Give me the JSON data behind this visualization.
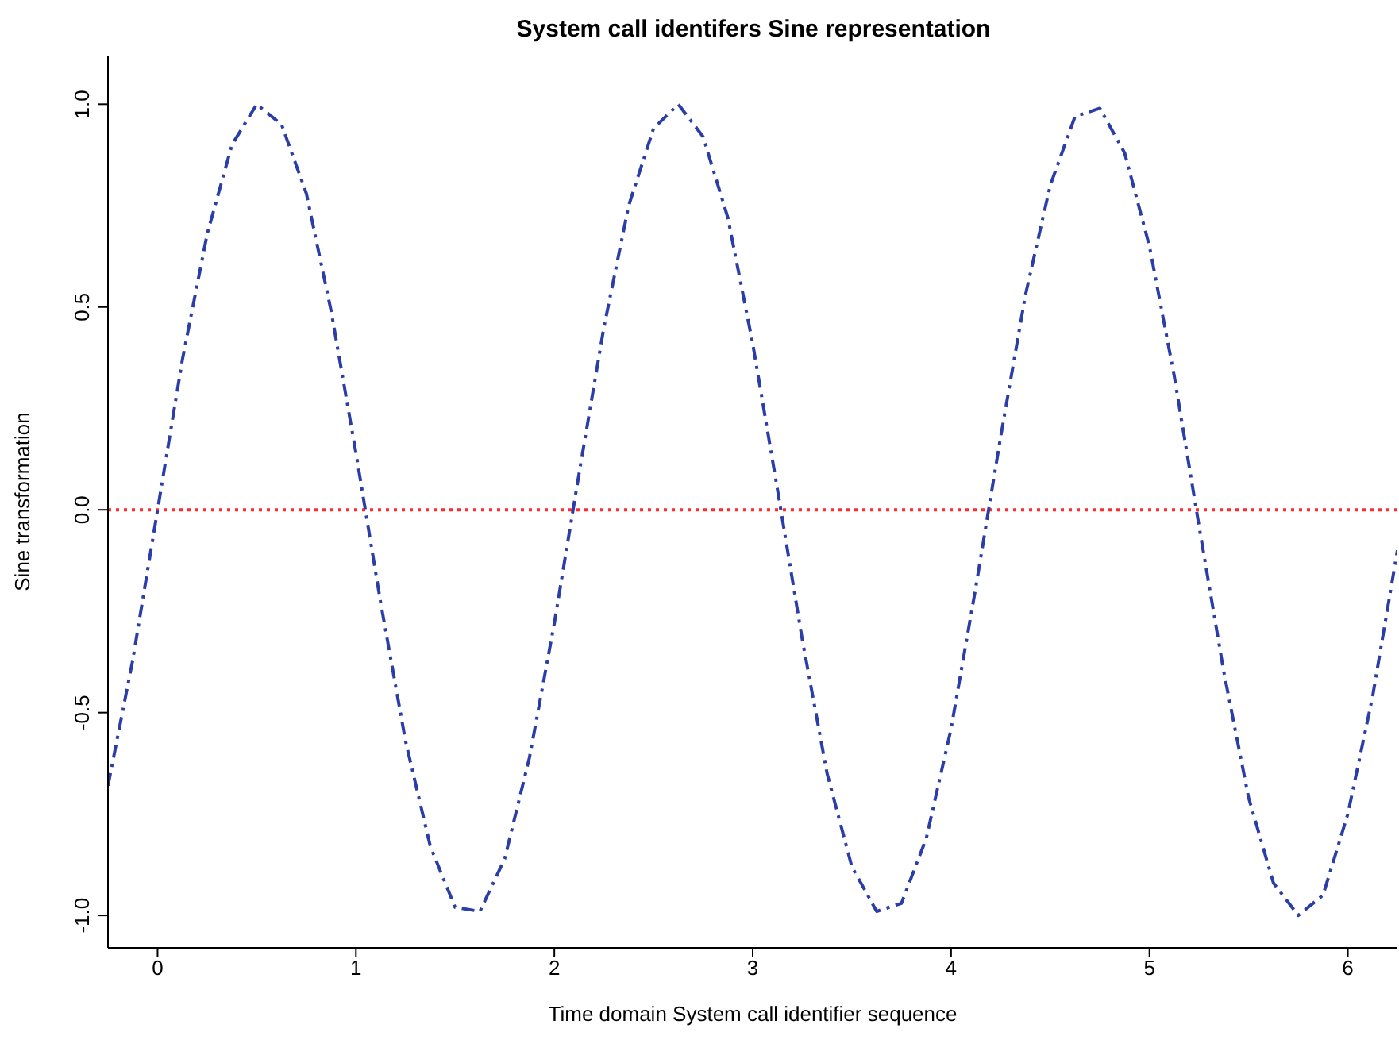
{
  "chart_data": {
    "type": "line",
    "title": "System call identifers Sine representation",
    "xlabel": "Time domain System call identifier sequence",
    "ylabel": "Sine transformation",
    "x": [
      -0.25,
      -0.125,
      0,
      0.125,
      0.25,
      0.375,
      0.5,
      0.625,
      0.75,
      0.875,
      1,
      1.125,
      1.25,
      1.375,
      1.5,
      1.625,
      1.75,
      1.875,
      2,
      2.125,
      2.25,
      2.375,
      2.5,
      2.625,
      2.75,
      2.875,
      3,
      3.125,
      3.25,
      3.375,
      3.5,
      3.625,
      3.75,
      3.875,
      4,
      4.125,
      4.25,
      4.375,
      4.5,
      4.625,
      4.75,
      4.875,
      5,
      5.125,
      5.25,
      5.375,
      5.5,
      5.625,
      5.75,
      5.875,
      6,
      6.125,
      6.25
    ],
    "series": [
      {
        "color": "#2b3ea8",
        "values": [
          -0.68,
          -0.37,
          0,
          0.37,
          0.68,
          0.9,
          1,
          0.95,
          0.78,
          0.49,
          0.14,
          -0.23,
          -0.57,
          -0.83,
          -0.98,
          -0.99,
          -0.86,
          -0.61,
          -0.28,
          0.09,
          0.45,
          0.75,
          0.94,
          1,
          0.92,
          0.72,
          0.41,
          0.05,
          -0.32,
          -0.65,
          -0.88,
          -0.99,
          -0.97,
          -0.81,
          -0.54,
          -0.19,
          0.18,
          0.53,
          0.8,
          0.97,
          0.99,
          0.88,
          0.65,
          0.33,
          -0.04,
          -0.4,
          -0.71,
          -0.92,
          -1,
          -0.95,
          -0.75,
          -0.46,
          -0.1
        ]
      }
    ],
    "xlim": [
      -0.25,
      6.25
    ],
    "xticks": [
      0,
      1,
      2,
      3,
      4,
      5,
      6
    ],
    "ylim": [
      -1.08,
      1.12
    ],
    "yticks": [
      {
        "value": -1,
        "label": "-1.0"
      },
      {
        "value": -0.5,
        "label": "-0.5"
      },
      {
        "value": 0,
        "label": "0.0"
      },
      {
        "value": 0.5,
        "label": "0.5"
      },
      {
        "value": 1,
        "label": "1.0"
      }
    ],
    "ref_lines": [
      {
        "axis": "y",
        "value": 0,
        "color": "#ff2a2a",
        "line_style": "dotted"
      }
    ],
    "grid": false,
    "legend": false,
    "marker": "none",
    "line_style": "dashed"
  }
}
